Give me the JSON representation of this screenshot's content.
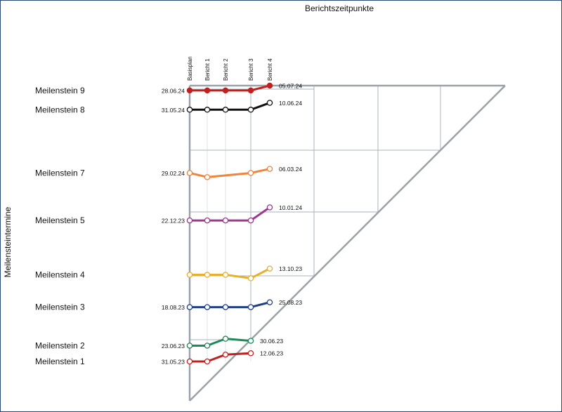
{
  "chart_data": {
    "type": "line",
    "title": "",
    "x_axis_title": "Berichtszeitpunkte",
    "y_axis_title": "Meilensteintermine",
    "report_points": [
      "Basisplan",
      "Bericht 1",
      "Bericht 2",
      "Bericht 3",
      "Bericht 4"
    ],
    "series": [
      {
        "name": "Meilenstein 9",
        "color": "#c0211f",
        "filled": true,
        "start_label": "28.06.24",
        "end_label": "05.07.24",
        "values": [
          "2024-06-28",
          "2024-06-28",
          "2024-06-28",
          "2024-06-28",
          "2024-07-05"
        ]
      },
      {
        "name": "Meilenstein 8",
        "color": "#111111",
        "filled": false,
        "start_label": "31.05.24",
        "end_label": "10.06.24",
        "values": [
          "2024-05-31",
          "2024-05-31",
          "2024-05-31",
          "2024-05-31",
          "2024-06-10"
        ]
      },
      {
        "name": "Meilenstein 7",
        "color": "#f0843a",
        "filled": false,
        "start_label": "29.02.24",
        "end_label": "06.03.24",
        "values": [
          "2024-02-29",
          "2024-02-23",
          null,
          "2024-02-29",
          "2024-03-06"
        ]
      },
      {
        "name": "Meilenstein 5",
        "color": "#9b3a8c",
        "filled": false,
        "start_label": "22.12.23",
        "end_label": "10.01.24",
        "values": [
          "2023-12-22",
          "2023-12-22",
          "2023-12-22",
          "2023-12-22",
          "2024-01-10"
        ]
      },
      {
        "name": "Meilenstein 4",
        "color": "#e6b030",
        "filled": false,
        "start_label": "",
        "end_label": "13.10.23",
        "values": [
          "2023-10-04",
          "2023-10-04",
          "2023-10-04",
          "2023-09-29",
          "2023-10-13"
        ]
      },
      {
        "name": "Meilenstein 3",
        "color": "#1f3f86",
        "filled": false,
        "start_label": "18.08.23",
        "end_label": "25.08.23",
        "values": [
          "2023-08-18",
          "2023-08-18",
          "2023-08-18",
          "2023-08-18",
          "2023-08-25"
        ]
      },
      {
        "name": "Meilenstein 2",
        "color": "#1e8a5a",
        "filled": false,
        "start_label": "23.06.23",
        "end_label": "30.06.23",
        "values": [
          "2023-06-23",
          "2023-06-23",
          "2023-07-03",
          "2023-06-30",
          null
        ]
      },
      {
        "name": "Meilenstein 1",
        "color": "#c0211f",
        "filled": false,
        "start_label": "31.05.23",
        "end_label": "12.06.23",
        "values": [
          "2023-05-31",
          "2023-05-31",
          "2023-06-10",
          "2023-06-12",
          null
        ]
      }
    ]
  }
}
